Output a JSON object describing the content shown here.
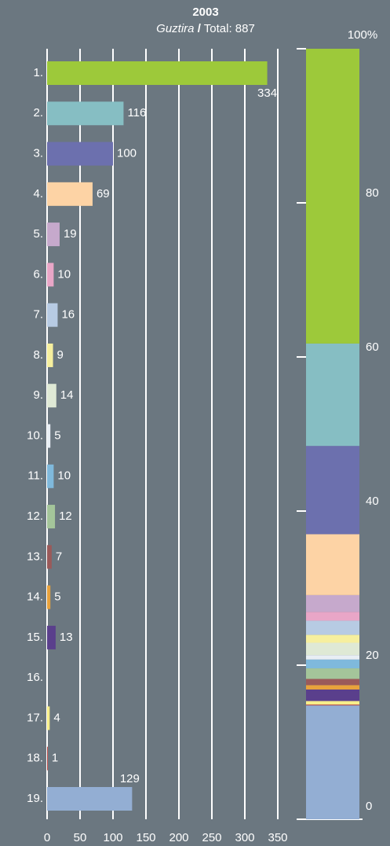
{
  "chart_data": [
    {
      "type": "hbar",
      "title": "2003",
      "subtitle": [
        "Guztira",
        "/",
        "Total: 887"
      ],
      "categories": [
        "1.",
        "2.",
        "3.",
        "4.",
        "5.",
        "6.",
        "7.",
        "8.",
        "9.",
        "10.",
        "11.",
        "12.",
        "13.",
        "14.",
        "15.",
        "16.",
        "17.",
        "18.",
        "19."
      ],
      "values": [
        334,
        116,
        100,
        69,
        19,
        10,
        16,
        9,
        14,
        5,
        10,
        12,
        7,
        5,
        13,
        null,
        4,
        1,
        129
      ],
      "colors": [
        "#9dc93a",
        "#86bec3",
        "#6c70ae",
        "#fdd3a5",
        "#c6a9cc",
        "#e9a6c7",
        "#b7cbe3",
        "#f6ef9e",
        "#dfe9d5",
        "#e8eef4",
        "#7fb9dc",
        "#a4c59a",
        "#9a5a5a",
        "#e8a23c",
        "#5a3f8c",
        "#c0392b",
        "#f7ee8a",
        "#c0504d",
        "#93aed3"
      ],
      "xlim": [
        0,
        350
      ],
      "xticks": [
        0,
        50,
        100,
        150,
        200,
        250,
        300,
        350
      ],
      "grid": true
    },
    {
      "type": "stacked_percent",
      "ylim": [
        0,
        100
      ],
      "yticks": [
        0,
        20,
        40,
        60,
        80,
        {
          "value": 100,
          "label": "100%"
        }
      ]
    }
  ]
}
